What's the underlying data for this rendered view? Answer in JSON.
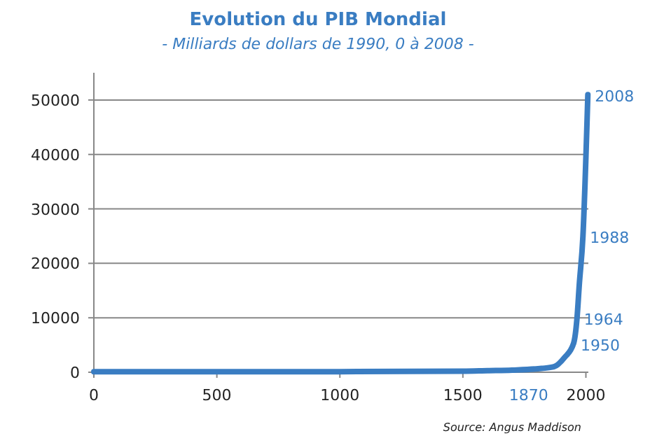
{
  "chart_data": {
    "type": "line",
    "title": "Evolution du PIB Mondial",
    "subtitle": "- Milliards de dollars de 1990, 0 à 2008 -",
    "x": [
      0,
      1000,
      1500,
      1600,
      1700,
      1820,
      1870,
      1913,
      1950,
      1964,
      1973,
      1988,
      2008
    ],
    "series": [
      {
        "color": "#3a7dc2",
        "values": [
          100,
          100,
          200,
          300,
          400,
          700,
          1000,
          2700,
          5300,
          10000,
          16000,
          25000,
          51000
        ]
      }
    ],
    "xlim": [
      0,
      2010
    ],
    "xticks": [
      0,
      500,
      1000,
      1500,
      2000
    ],
    "ylim": [
      0,
      55000
    ],
    "yticks": [
      0,
      10000,
      20000,
      30000,
      40000,
      50000
    ],
    "grid": "y",
    "marker": "none",
    "line_style": "solid",
    "annotations": [
      {
        "text": "2008",
        "x": 2008,
        "y": 51000
      },
      {
        "text": "1988",
        "x": 1988,
        "y": 25000
      },
      {
        "text": "1964",
        "x": 1964,
        "y": 10000
      },
      {
        "text": "1950",
        "x": 1950,
        "y": 5300
      },
      {
        "text": "1870",
        "x": 1870,
        "y": 1000
      },
      "Source: Angus Maddison"
    ]
  }
}
